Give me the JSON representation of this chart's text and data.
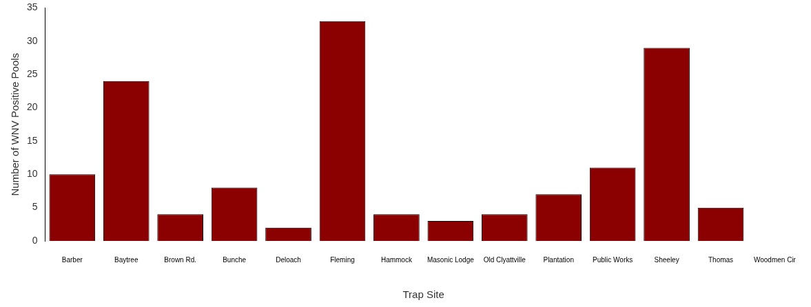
{
  "chart_data": {
    "type": "bar",
    "xlabel": "Trap Site",
    "ylabel": "Number of WNV Positive Pools",
    "categories": [
      "Barber",
      "Baytree",
      "Brown Rd.",
      "Bunche",
      "Deloach",
      "Fleming",
      "Hammock",
      "Masonic Lodge",
      "Old Clyattville",
      "Plantation",
      "Public Works",
      "Sheeley",
      "Thomas",
      "Woodmen Cir"
    ],
    "values": [
      10,
      24,
      4,
      8,
      2,
      33,
      4,
      3,
      4,
      7,
      11,
      29,
      5,
      0
    ],
    "color": "#8b0000",
    "ylim": [
      0,
      35
    ],
    "yticks": [
      0,
      5,
      10,
      15,
      20,
      25,
      30,
      35
    ],
    "grid": false,
    "legend": false
  }
}
